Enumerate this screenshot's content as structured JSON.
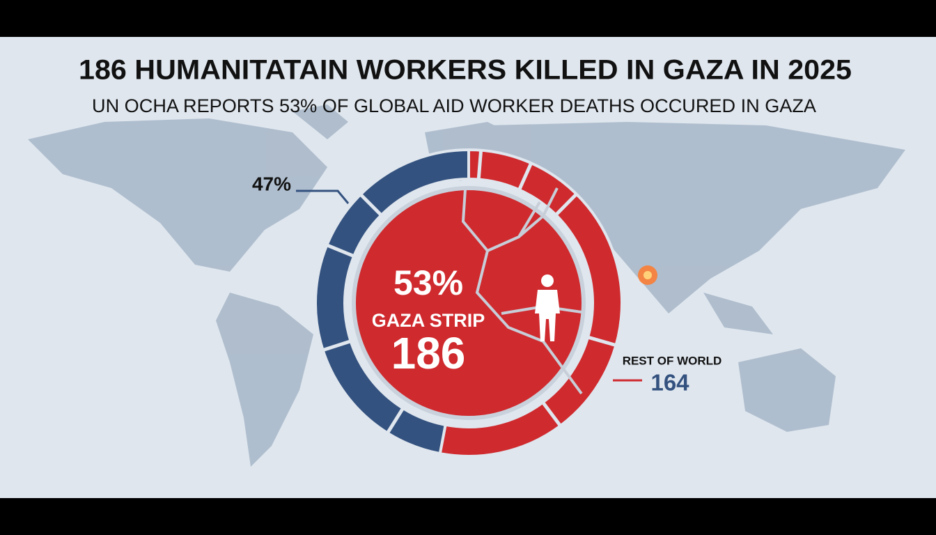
{
  "chart_data": {
    "type": "donut",
    "title": "186 HUMANITATAIN WORKERS KILLED IN GAZA IN 2025",
    "subtitle": "UN OCHA REPORTS 53% OF GLOBAL AID WORKER DEATHS OCCURED IN GAZA",
    "categories": [
      "GAZA STRIP",
      "REST OF WORLD"
    ],
    "values": [
      53,
      47
    ],
    "value_labels": [
      "53%",
      "47%"
    ],
    "counts": [
      186,
      164
    ],
    "colors": [
      "#cf2a2e",
      "#34527f"
    ]
  }
}
